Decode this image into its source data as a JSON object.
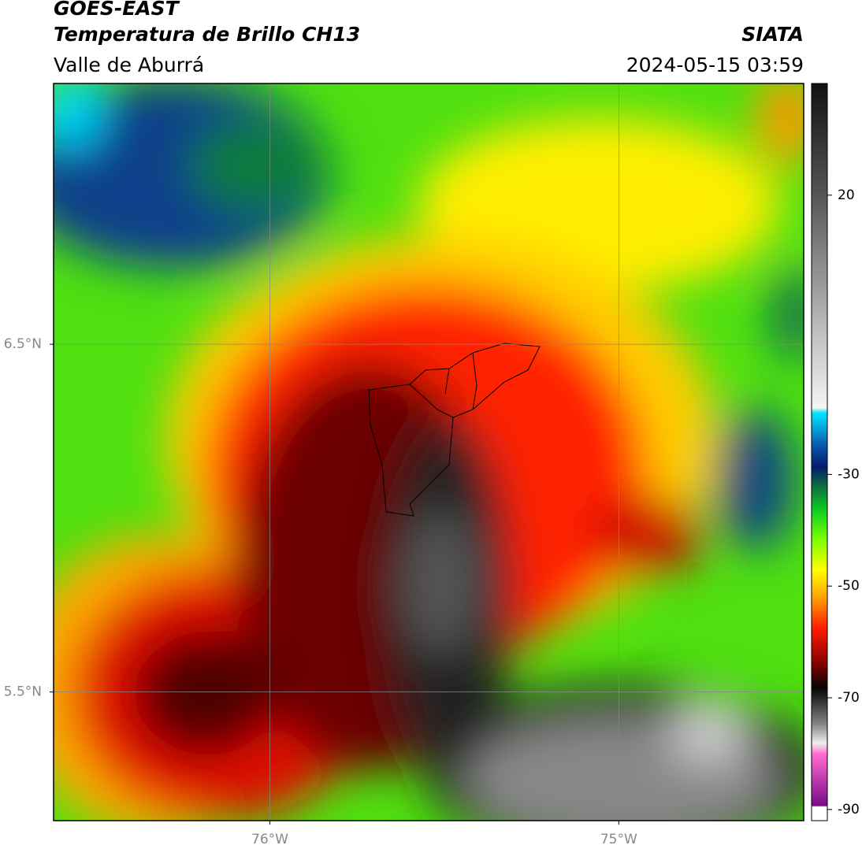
{
  "header": {
    "title": "GOES-EAST",
    "subtitle": "Temperatura de Brillo CH13",
    "source": "SIATA",
    "region": "Valle de Aburrá",
    "timestamp": "2024-05-15 03:59"
  },
  "map": {
    "xlim": [
      -76.62,
      -74.47
    ],
    "ylim": [
      5.13,
      7.25
    ],
    "xticks": [
      {
        "value": -76,
        "label": "76°W"
      },
      {
        "value": -75,
        "label": "75°W"
      }
    ],
    "yticks": [
      {
        "value": 6.5,
        "label": "6.5°N"
      },
      {
        "value": 5.5,
        "label": "5.5°N"
      }
    ],
    "grid": true
  },
  "colorbar": {
    "lim": [
      -92,
      40
    ],
    "ticks": [
      20,
      -30,
      -50,
      -70,
      -90
    ]
  }
}
